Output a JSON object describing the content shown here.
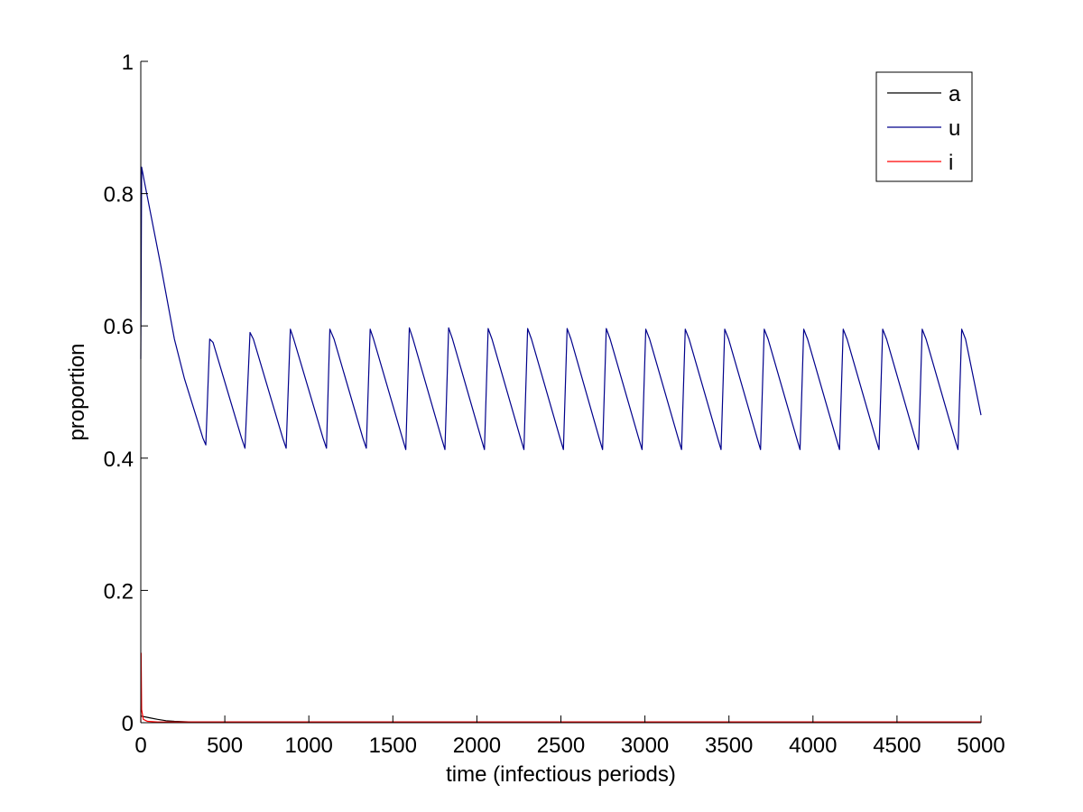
{
  "chart_data": {
    "type": "line",
    "title": "",
    "xlabel": "time (infectious periods)",
    "ylabel": "proportion",
    "xlim": [
      0,
      5000
    ],
    "ylim": [
      0,
      1
    ],
    "x_ticks": [
      0,
      500,
      1000,
      1500,
      2000,
      2500,
      3000,
      3500,
      4000,
      4500,
      5000
    ],
    "x_tick_labels": [
      "0",
      "500",
      "1000",
      "1500",
      "2000",
      "2500",
      "3000",
      "3500",
      "4000",
      "4500",
      "5000"
    ],
    "y_ticks": [
      0,
      0.2,
      0.4,
      0.6,
      0.8,
      1
    ],
    "y_tick_labels": [
      "0",
      "0.2",
      "0.4",
      "0.6",
      "0.8",
      "1"
    ],
    "grid": false,
    "legend": {
      "placement": "top-right",
      "entries": [
        "a",
        "u",
        "i"
      ]
    },
    "series": [
      {
        "name": "a",
        "color": "#000000",
        "x": [
          0,
          20,
          60,
          100,
          150,
          200,
          250,
          300,
          400,
          1000,
          5000
        ],
        "y": [
          0.01,
          0.009,
          0.007,
          0.005,
          0.003,
          0.002,
          0.0015,
          0.001,
          0.001,
          0.001,
          0.001
        ]
      },
      {
        "name": "u",
        "color": "#00008B",
        "x": [
          0,
          5,
          20,
          120,
          200,
          260,
          370,
          387,
          410,
          430,
          600,
          620,
          650,
          670,
          845,
          865,
          890,
          910,
          1085,
          1105,
          1125,
          1150,
          1322,
          1342,
          1365,
          1385,
          1557,
          1577,
          1598,
          1620,
          1790,
          1810,
          1832,
          1855,
          2025,
          2045,
          2067,
          2090,
          2260,
          2280,
          2302,
          2325,
          2495,
          2515,
          2537,
          2560,
          2728,
          2748,
          2770,
          2793,
          2963,
          2983,
          3005,
          3028,
          3198,
          3218,
          3240,
          3263,
          3433,
          3453,
          3475,
          3498,
          3668,
          3688,
          3710,
          3733,
          3903,
          3923,
          3945,
          3968,
          4138,
          4158,
          4180,
          4203,
          4373,
          4393,
          4415,
          4438,
          4608,
          4628,
          4650,
          4673,
          4843,
          4863,
          4885,
          4908,
          5000
        ],
        "y": [
          0.55,
          0.84,
          0.82,
          0.69,
          0.58,
          0.52,
          0.43,
          0.42,
          0.58,
          0.575,
          0.43,
          0.415,
          0.59,
          0.58,
          0.43,
          0.415,
          0.595,
          0.58,
          0.43,
          0.415,
          0.595,
          0.58,
          0.43,
          0.415,
          0.595,
          0.58,
          0.43,
          0.413,
          0.597,
          0.58,
          0.43,
          0.413,
          0.597,
          0.58,
          0.43,
          0.413,
          0.596,
          0.58,
          0.43,
          0.413,
          0.596,
          0.58,
          0.43,
          0.413,
          0.596,
          0.58,
          0.43,
          0.413,
          0.596,
          0.58,
          0.43,
          0.413,
          0.595,
          0.58,
          0.43,
          0.413,
          0.595,
          0.58,
          0.43,
          0.413,
          0.595,
          0.58,
          0.43,
          0.413,
          0.595,
          0.58,
          0.43,
          0.413,
          0.595,
          0.58,
          0.43,
          0.413,
          0.595,
          0.58,
          0.43,
          0.413,
          0.595,
          0.58,
          0.43,
          0.413,
          0.595,
          0.58,
          0.43,
          0.413,
          0.595,
          0.58,
          0.465
        ]
      },
      {
        "name": "i",
        "color": "#FF0000",
        "x": [
          0,
          2,
          5,
          15,
          40,
          100,
          200,
          5000
        ],
        "y": [
          0.0,
          0.105,
          0.02,
          0.005,
          0.002,
          0.001,
          0.001,
          0.001
        ]
      }
    ]
  }
}
